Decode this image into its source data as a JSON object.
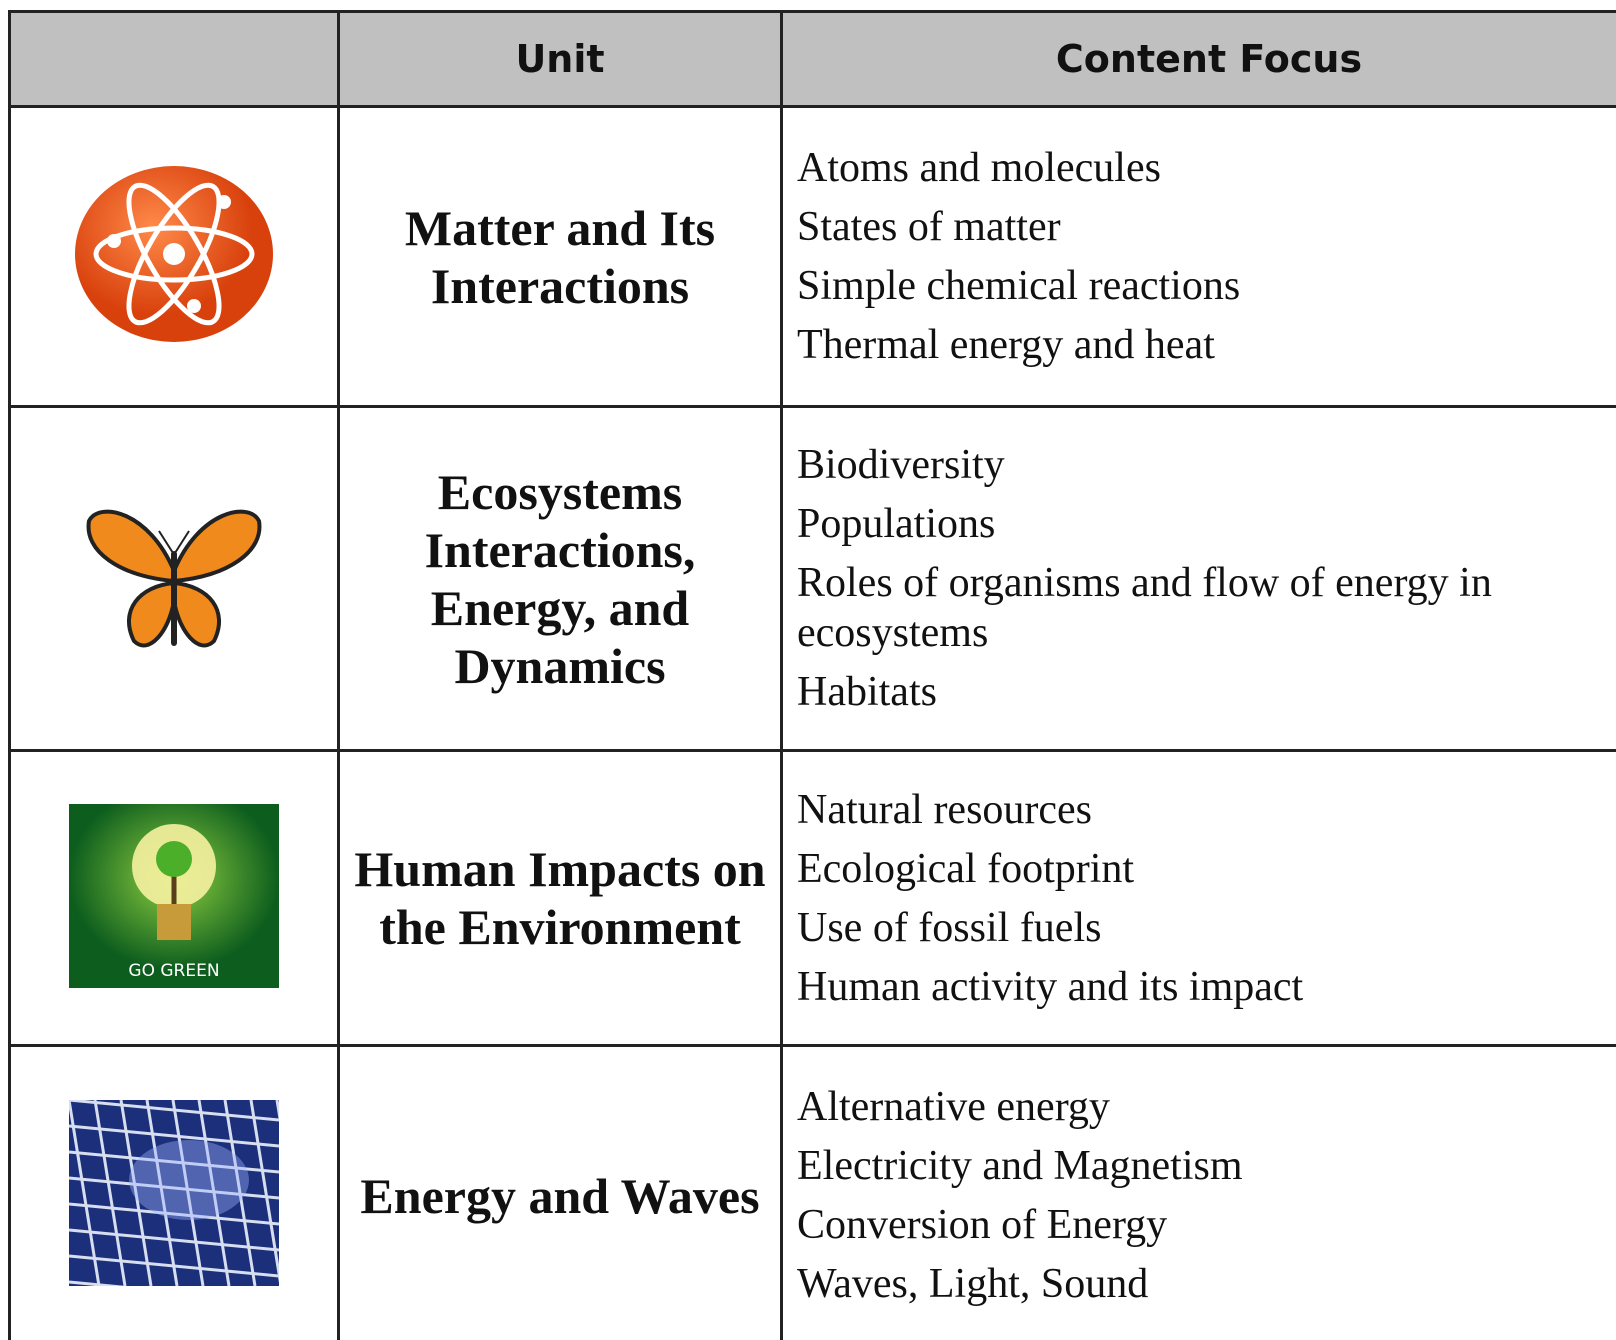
{
  "table": {
    "header": [
      "",
      "Unit",
      "Content Focus"
    ],
    "rows": [
      {
        "unit": "Matter and Its Interactions",
        "focus": [
          "Atoms and molecules",
          "States of matter",
          "Simple chemical reactions",
          "Thermal energy and heat"
        ]
      },
      {
        "unit": "Ecosystems Interactions, Energy, and Dynamics",
        "focus": [
          "Biodiversity",
          "Populations",
          "Roles of organisms and flow of energy in ecosystems",
          "Habitats"
        ]
      },
      {
        "unit": "Human Impacts on the Environment",
        "icon_text": "GO GREEN",
        "focus": [
          "Natural resources",
          "Ecological footprint",
          "Use of fossil fuels",
          "Human activity and its impact"
        ]
      },
      {
        "unit": "Energy and Waves",
        "focus": [
          "Alternative energy",
          "Electricity and Magnetism",
          "Conversion of Energy",
          "Waves, Light, Sound"
        ]
      }
    ]
  }
}
